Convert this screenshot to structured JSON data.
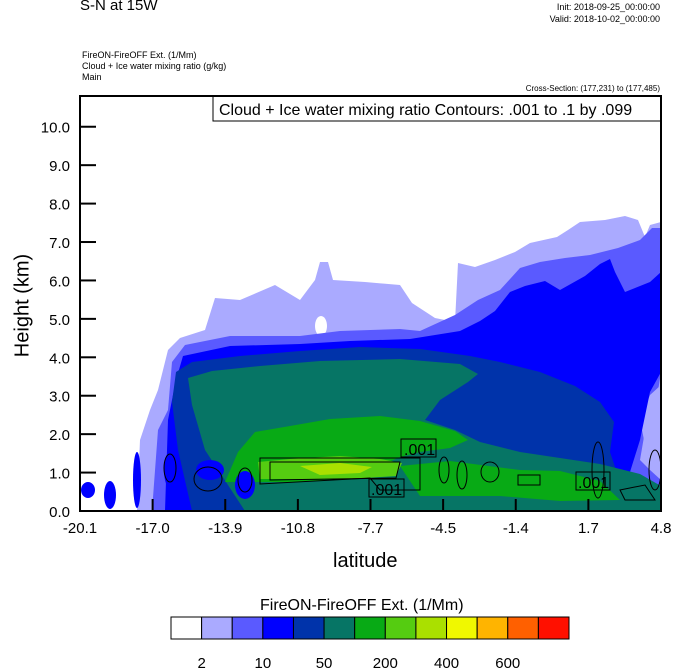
{
  "header": {
    "title": "S-N at 15W",
    "init": "Init: 2018-09-25_00:00:00",
    "valid": "Valid: 2018-10-02_00:00:00",
    "subtitle_lines": [
      "FireON-FireOFF Ext.   (1/Mm)",
      "Cloud + Ice water mixing ratio   (g/kg)",
      "Main"
    ],
    "cross_section": "Cross-Section: (177,231) to (177,485)"
  },
  "chart_data": {
    "type": "contour",
    "title": "",
    "info_box": "Cloud + Ice water mixing ratio Contours: .001 to .1 by .099",
    "xlabel": "latitude",
    "ylabel": "Height (km)",
    "xlim": [
      -20.1,
      4.8
    ],
    "ylim": [
      0.0,
      10.8
    ],
    "x_ticks": [
      "-20.1",
      "-17.0",
      "-13.9",
      "-10.8",
      "-7.7",
      "-4.5",
      "-1.4",
      "1.7",
      "4.8"
    ],
    "y_ticks": [
      "0.0",
      "1.0",
      "2.0",
      "3.0",
      "4.0",
      "5.0",
      "6.0",
      "7.0",
      "8.0",
      "9.0",
      "10.0"
    ],
    "contour_labels": [
      ".001",
      ".001",
      ".001"
    ],
    "colorbar": {
      "title": "FireON-FireOFF Ext.  (1/Mm)",
      "colors": [
        "#ffffff",
        "#aaaaff",
        "#5a5aff",
        "#0000ff",
        "#0033aa",
        "#067565",
        "#08aa15",
        "#55cc11",
        "#aae000",
        "#f0f800",
        "#ffb400",
        "#ff6000",
        "#ff1000"
      ],
      "tick_labels": [
        "2",
        "10",
        "50",
        "200",
        "400",
        "600"
      ]
    }
  }
}
